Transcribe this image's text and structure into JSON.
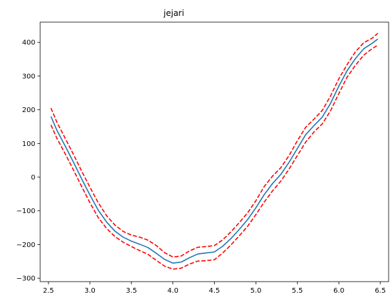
{
  "chart_data": {
    "type": "line",
    "title": "jejari",
    "xlabel": "",
    "ylabel": "",
    "xlim": [
      2.4,
      6.6
    ],
    "ylim": [
      -310,
      460
    ],
    "xticks": [
      2.5,
      3.0,
      3.5,
      4.0,
      4.5,
      5.0,
      5.5,
      6.0,
      6.5
    ],
    "xtick_labels": [
      "2.5",
      "3.0",
      "3.5",
      "4.0",
      "4.5",
      "5.0",
      "5.5",
      "6.0",
      "6.5"
    ],
    "yticks": [
      -300,
      -200,
      -100,
      0,
      100,
      200,
      300,
      400
    ],
    "ytick_labels": [
      "−300",
      "−200",
      "−100",
      "0",
      "100",
      "200",
      "300",
      "400"
    ],
    "grid": false,
    "series": [
      {
        "color": "#1f77b4",
        "dash": "solid",
        "x": [
          2.53,
          2.6,
          2.7,
          2.8,
          2.9,
          3.0,
          3.1,
          3.2,
          3.3,
          3.4,
          3.5,
          3.6,
          3.7,
          3.8,
          3.9,
          4.0,
          4.1,
          4.2,
          4.3,
          4.4,
          4.5,
          4.6,
          4.7,
          4.8,
          4.9,
          5.0,
          5.1,
          5.2,
          5.3,
          5.4,
          5.5,
          5.6,
          5.7,
          5.8,
          5.9,
          6.0,
          6.1,
          6.2,
          6.3,
          6.4,
          6.47
        ],
        "y": [
          180,
          140,
          93,
          45,
          -5,
          -53,
          -98,
          -133,
          -160,
          -178,
          -190,
          -199,
          -209,
          -226,
          -244,
          -255,
          -252,
          -239,
          -228,
          -225,
          -222,
          -205,
          -182,
          -155,
          -126,
          -91,
          -52,
          -19,
          8,
          44,
          85,
          126,
          153,
          178,
          219,
          270,
          316,
          352,
          381,
          397,
          410
        ]
      },
      {
        "color": "#ff0000",
        "dash": "dashed",
        "x": [
          2.53,
          2.6,
          2.7,
          2.8,
          2.9,
          3.0,
          3.1,
          3.2,
          3.3,
          3.4,
          3.5,
          3.6,
          3.7,
          3.8,
          3.9,
          4.0,
          4.1,
          4.2,
          4.3,
          4.4,
          4.5,
          4.6,
          4.7,
          4.8,
          4.9,
          5.0,
          5.1,
          5.2,
          5.3,
          5.4,
          5.5,
          5.6,
          5.7,
          5.8,
          5.9,
          6.0,
          6.1,
          6.2,
          6.3,
          6.4,
          6.47
        ],
        "y": [
          205,
          164,
          116,
          68,
          18,
          -30,
          -76,
          -114,
          -142,
          -161,
          -172,
          -178,
          -187,
          -203,
          -224,
          -237,
          -234,
          -219,
          -208,
          -206,
          -203,
          -186,
          -162,
          -135,
          -106,
          -70,
          -28,
          3,
          28,
          64,
          108,
          148,
          172,
          198,
          241,
          292,
          334,
          372,
          399,
          412,
          427
        ]
      },
      {
        "color": "#ff0000",
        "dash": "dashed",
        "x": [
          2.53,
          2.6,
          2.7,
          2.8,
          2.9,
          3.0,
          3.1,
          3.2,
          3.3,
          3.4,
          3.5,
          3.6,
          3.7,
          3.8,
          3.9,
          4.0,
          4.1,
          4.2,
          4.3,
          4.4,
          4.5,
          4.6,
          4.7,
          4.8,
          4.9,
          5.0,
          5.1,
          5.2,
          5.3,
          5.4,
          5.5,
          5.6,
          5.7,
          5.8,
          5.9,
          6.0,
          6.1,
          6.2,
          6.3,
          6.4,
          6.47
        ],
        "y": [
          155,
          116,
          70,
          22,
          -28,
          -76,
          -120,
          -152,
          -176,
          -193,
          -206,
          -218,
          -229,
          -247,
          -264,
          -273,
          -270,
          -258,
          -249,
          -248,
          -245,
          -225,
          -201,
          -174,
          -146,
          -111,
          -74,
          -41,
          -12,
          24,
          64,
          104,
          134,
          158,
          197,
          248,
          297,
          332,
          362,
          381,
          392
        ]
      }
    ]
  }
}
